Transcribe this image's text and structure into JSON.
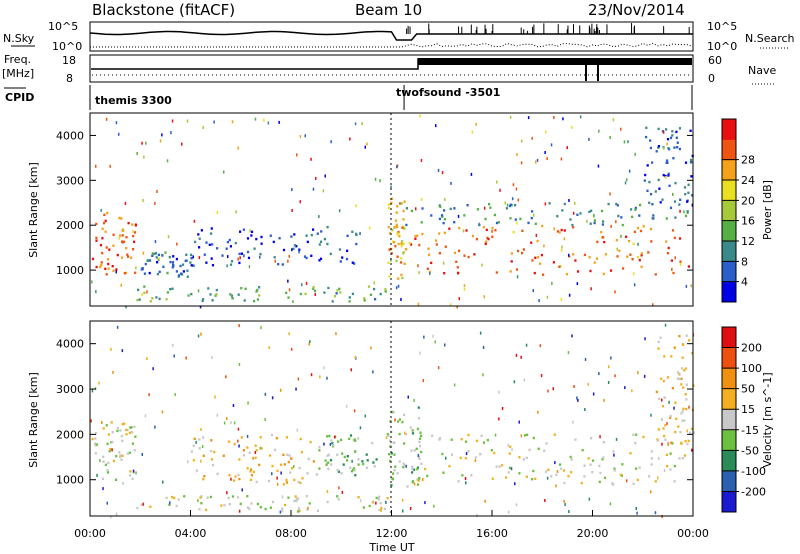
{
  "header": {
    "radar": "Blackstone (fitACF)",
    "beam": "Beam 10",
    "date": "23/Nov/2014"
  },
  "strips": {
    "nsky_label": "N.Sky",
    "nsky_ticks": [
      "10^5",
      "10^0"
    ],
    "nsearch_label": "N.Search",
    "nsearch_ticks": [
      "10^5",
      "10^0"
    ],
    "freq_label": "Freq.",
    "freq_unit": "[MHz]",
    "freq_ticks": [
      "18",
      "8"
    ],
    "nave_label": "Nave",
    "nave_ticks": [
      "60",
      "0"
    ],
    "cpid_label": "CPID",
    "cpid_segments": [
      {
        "name": "themis 3300",
        "start_ut": 0.0,
        "end_ut": 12.5
      },
      {
        "name": "twofsound -3501",
        "start_ut": 12.5,
        "end_ut": 24.0
      }
    ]
  },
  "chart_data": [
    {
      "type": "heatmap",
      "name": "power-panel",
      "xlabel": "",
      "ylabel": "Slant Range [km]",
      "xlim": [
        0,
        24
      ],
      "ylim": [
        200,
        4500
      ],
      "yticks": [
        1000,
        2000,
        3000,
        4000
      ],
      "colorbar_label": "Power [dB]",
      "colorbar_ticks": [
        4,
        8,
        12,
        16,
        20,
        24,
        28
      ],
      "colorbar_colors": [
        "#0000e6",
        "#2a5ec8",
        "#3a8a8a",
        "#55b046",
        "#a6c93a",
        "#e8e020",
        "#f4a21a",
        "#ee5512",
        "#e81010"
      ],
      "bands": [
        {
          "t0": 0.0,
          "t1": 1.8,
          "r0": 900,
          "r1": 2300,
          "intensity": 0.85
        },
        {
          "t0": 1.8,
          "t1": 11.9,
          "r0": 300,
          "r1": 650,
          "intensity": 0.35
        },
        {
          "t0": 2.0,
          "t1": 4.0,
          "r0": 850,
          "r1": 1400,
          "intensity": 0.15
        },
        {
          "t0": 4.0,
          "t1": 11.0,
          "r0": 1100,
          "r1": 2000,
          "intensity": 0.12
        },
        {
          "t0": 11.8,
          "t1": 12.5,
          "r0": 800,
          "r1": 2600,
          "intensity": 0.7
        },
        {
          "t0": 12.5,
          "t1": 23.8,
          "r0": 900,
          "r1": 2000,
          "intensity": 0.85
        },
        {
          "t0": 12.5,
          "t1": 23.8,
          "r0": 2000,
          "r1": 2500,
          "intensity": 0.25
        },
        {
          "t0": 22.0,
          "t1": 24.0,
          "r0": 2500,
          "r1": 4200,
          "intensity": 0.15
        }
      ]
    },
    {
      "type": "heatmap",
      "name": "velocity-panel",
      "xlabel": "Time UT",
      "ylabel": "Slant Range [km]",
      "xlim": [
        0,
        24
      ],
      "ylim": [
        200,
        4500
      ],
      "xticks": [
        "00:00",
        "04:00",
        "08:00",
        "12:00",
        "16:00",
        "20:00",
        "00:00"
      ],
      "yticks": [
        1000,
        2000,
        3000,
        4000
      ],
      "colorbar_label": "Velocity [m s^-1]",
      "colorbar_ticks": [
        200,
        100,
        50,
        15,
        -15,
        -50,
        -100,
        -200
      ],
      "colorbar_colors": [
        "#1a1ad0",
        "#2a60b0",
        "#2a8a5a",
        "#6cc040",
        "#c8c8c8",
        "#f2b020",
        "#f09010",
        "#ee5010",
        "#e01010"
      ],
      "bands": [
        {
          "t0": 0.0,
          "t1": 1.8,
          "r0": 900,
          "r1": 2300,
          "intensity": 0.5
        },
        {
          "t0": 1.8,
          "t1": 11.9,
          "r0": 300,
          "r1": 650,
          "intensity": 0.5
        },
        {
          "t0": 4.0,
          "t1": 9.0,
          "r0": 900,
          "r1": 2000,
          "intensity": 0.62
        },
        {
          "t0": 9.0,
          "t1": 11.5,
          "r0": 1100,
          "r1": 2000,
          "intensity": 0.38
        },
        {
          "t0": 11.8,
          "t1": 13.2,
          "r0": 800,
          "r1": 2600,
          "intensity": 0.38
        },
        {
          "t0": 12.5,
          "t1": 23.8,
          "r0": 900,
          "r1": 2000,
          "intensity": 0.5
        },
        {
          "t0": 22.5,
          "t1": 24.0,
          "r0": 1800,
          "r1": 4200,
          "intensity": 0.6
        }
      ]
    }
  ]
}
